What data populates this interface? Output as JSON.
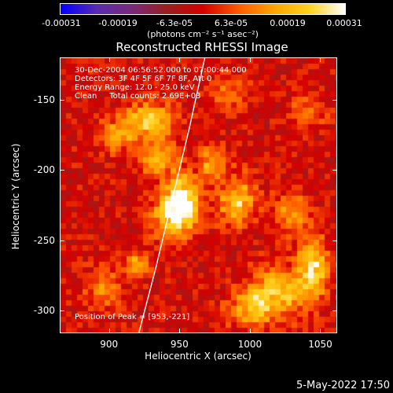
{
  "colorbar": {
    "ticks": [
      "-0.00031",
      "-0.00019",
      "-6.3e-05",
      "6.3e-05",
      "0.00019",
      "0.00031"
    ],
    "unit": "(photons cm⁻² s⁻¹ asec⁻²)",
    "range": [
      -0.00031,
      0.00031
    ],
    "colormap": [
      "#0000ff",
      "#5a2bb0",
      "#7a2a7a",
      "#9b1e1e",
      "#d40000",
      "#ff5a00",
      "#ffa400",
      "#ffd21e",
      "#ffffff"
    ]
  },
  "chart_data": {
    "type": "heatmap",
    "title": "Reconstructed RHESSI Image",
    "xlabel": "Heliocentric X (arcsec)",
    "ylabel": "Heliocentric Y (arcsec)",
    "xlim": [
      865,
      1062
    ],
    "ylim": [
      -316,
      -120
    ],
    "x_ticks": [
      "900",
      "950",
      "1000",
      "1050"
    ],
    "y_ticks": [
      "-150",
      "-200",
      "-250",
      "-300"
    ],
    "info_lines": [
      "30-Dec-2004 06:56:52.000 to 07:00:44.000",
      "Detectors: 3F 4F 5F 6F 7F 8F, Att 0",
      "Energy Range: 12.0 - 25.0 keV",
      "Clean     Total counts: 2.69E+03"
    ],
    "peak_label": "Position of Peak = [953,-221]",
    "peak": [
      953,
      -221
    ],
    "limb_curve": [
      [
        921,
        -316
      ],
      [
        933,
        -270
      ],
      [
        945,
        -220
      ],
      [
        957,
        -170
      ],
      [
        968,
        -120
      ]
    ],
    "sources": [
      {
        "x": 952,
        "y": -222,
        "sx": 8,
        "sy": 12,
        "amp": 0.00031
      },
      {
        "x": 944,
        "y": -233,
        "sx": 10,
        "sy": 10,
        "amp": 0.00022
      },
      {
        "x": 928,
        "y": -165,
        "sx": 12,
        "sy": 9,
        "amp": 0.00024
      },
      {
        "x": 905,
        "y": -175,
        "sx": 8,
        "sy": 8,
        "amp": 0.00016
      },
      {
        "x": 935,
        "y": -192,
        "sx": 9,
        "sy": 9,
        "amp": 0.00018
      },
      {
        "x": 991,
        "y": -222,
        "sx": 10,
        "sy": 12,
        "amp": 0.0002
      },
      {
        "x": 973,
        "y": -195,
        "sx": 7,
        "sy": 8,
        "amp": 0.00016
      },
      {
        "x": 1030,
        "y": -230,
        "sx": 8,
        "sy": 10,
        "amp": 0.00014
      },
      {
        "x": 920,
        "y": -268,
        "sx": 6,
        "sy": 6,
        "amp": 0.00019
      },
      {
        "x": 895,
        "y": -285,
        "sx": 8,
        "sy": 10,
        "amp": 0.00014
      },
      {
        "x": 1018,
        "y": -288,
        "sx": 14,
        "sy": 12,
        "amp": 0.00022
      },
      {
        "x": 1045,
        "y": -270,
        "sx": 8,
        "sy": 14,
        "amp": 0.00026
      },
      {
        "x": 1000,
        "y": -300,
        "sx": 10,
        "sy": 8,
        "amp": 0.00018
      },
      {
        "x": 1042,
        "y": -158,
        "sx": 8,
        "sy": 8,
        "amp": 0.00012
      },
      {
        "x": 985,
        "y": -145,
        "sx": 10,
        "sy": 8,
        "amp": 0.0001
      }
    ]
  },
  "footer": {
    "date": "5-May-2022 17:50"
  }
}
